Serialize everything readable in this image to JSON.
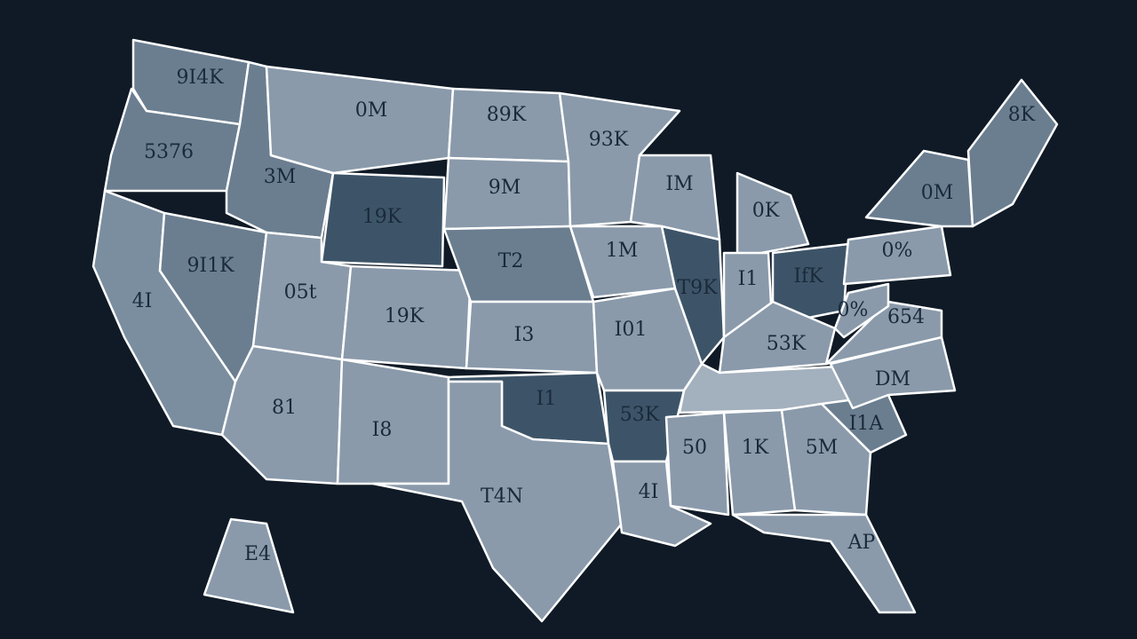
{
  "regions": [
    {
      "label": "9I4K",
      "color": "#6b7e90"
    },
    {
      "label": "5376",
      "color": "#6b7e90"
    },
    {
      "label": "4I",
      "color": "#7b8ea0"
    },
    {
      "label": "9I1K",
      "color": "#6b7e90"
    },
    {
      "label": "3M",
      "color": "#6b7e90"
    },
    {
      "label": "0M",
      "color": "#8a9aab"
    },
    {
      "label": "19K",
      "color": "#3d5468"
    },
    {
      "label": "05t",
      "color": "#8a9aab"
    },
    {
      "label": "19K",
      "color": "#8a9aab"
    },
    {
      "label": "81",
      "color": "#8a9aab"
    },
    {
      "label": "I8",
      "color": "#8a9aab"
    },
    {
      "label": "89K",
      "color": "#8a9aab"
    },
    {
      "label": "9M",
      "color": "#8a9aab"
    },
    {
      "label": "T2",
      "color": "#6b7e90"
    },
    {
      "label": "I3",
      "color": "#8a9aab"
    },
    {
      "label": "I1",
      "color": "#3d5468"
    },
    {
      "label": "T4N",
      "color": "#8a9aab"
    },
    {
      "label": "93K",
      "color": "#8a9aab"
    },
    {
      "label": "1M",
      "color": "#8a9aab"
    },
    {
      "label": "I01",
      "color": "#8a9aab"
    },
    {
      "label": "53K",
      "color": "#3d5468"
    },
    {
      "label": "4I",
      "color": "#8a9aab"
    },
    {
      "label": "IM",
      "color": "#8a9aab"
    },
    {
      "label": "T9K",
      "color": "#3d5468"
    },
    {
      "label": "0K",
      "color": "#8a9aab"
    },
    {
      "label": "I1",
      "color": "#8a9aab"
    },
    {
      "label": "IfK",
      "color": "#3d5468"
    },
    {
      "label": "53K",
      "color": "#8a9aab"
    },
    {
      "label": "",
      "color": "#a3b0bd"
    },
    {
      "label": "50",
      "color": "#8a9aab"
    },
    {
      "label": "1K",
      "color": "#8a9aab"
    },
    {
      "label": "5M",
      "color": "#8a9aab"
    },
    {
      "label": "AP",
      "color": "#8a9aab"
    },
    {
      "label": "I1A",
      "color": "#6b7e90"
    },
    {
      "label": "DM",
      "color": "#8a9aab"
    },
    {
      "label": "654",
      "color": "#8a9aab"
    },
    {
      "label": "0%",
      "color": "#8a9aab"
    },
    {
      "label": "0%",
      "color": "#8a9aab"
    },
    {
      "label": "0M",
      "color": "#6b7e90"
    },
    {
      "label": "8K",
      "color": "#6b7e90"
    },
    {
      "label": "E4",
      "color": "#8a9aab"
    }
  ]
}
